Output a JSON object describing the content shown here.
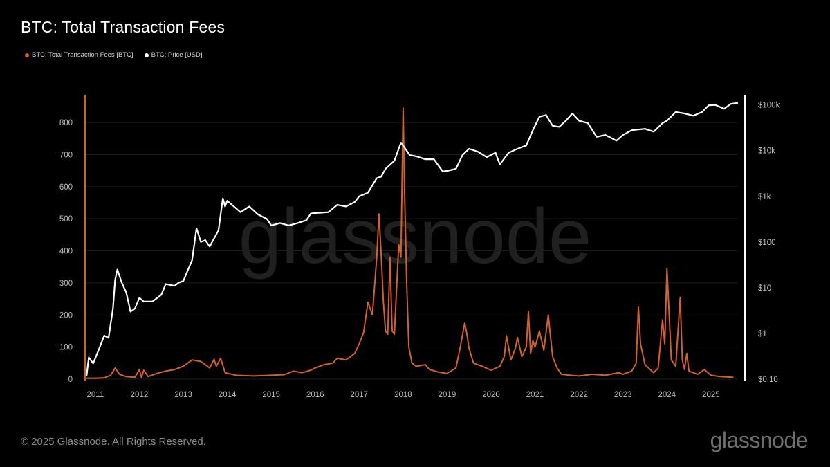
{
  "title": "BTC: Total Transaction Fees",
  "legend": [
    {
      "label": "BTC: Total Transaction Fees [BTC]",
      "color": "#d2612b"
    },
    {
      "label": "BTC: Price [USD]",
      "color": "#ffffff"
    }
  ],
  "watermark": "glassnode",
  "footer": "© 2025 Glassnode. All Rights Reserved.",
  "brand": "glassnode",
  "chart_data": {
    "type": "line",
    "title": "BTC: Total Transaction Fees",
    "xlabel": "",
    "x_ticks": [
      "2011",
      "2012",
      "2013",
      "2014",
      "2015",
      "2016",
      "2017",
      "2018",
      "2019",
      "2020",
      "2021",
      "2022",
      "2023",
      "2024",
      "2025"
    ],
    "xlim": [
      2010.75,
      2025.6
    ],
    "y_left": {
      "ticks": [
        0,
        100,
        200,
        300,
        400,
        500,
        600,
        700,
        800
      ],
      "ylim": [
        0,
        880
      ]
    },
    "y_right": {
      "scale": "log",
      "ticks": [
        0.1,
        1,
        10,
        100,
        1000,
        10000,
        100000
      ],
      "tick_labels": [
        "$0.10",
        "$1",
        "$10",
        "$100",
        "$1k",
        "$10k",
        "$100k"
      ],
      "ylim": [
        0.1,
        150000
      ]
    },
    "grid": true,
    "legend_position": "top-left",
    "series": [
      {
        "name": "BTC: Total Transaction Fees [BTC]",
        "axis": "left",
        "color": "#d2612b",
        "points": [
          [
            2010.8,
            3
          ],
          [
            2011.0,
            3
          ],
          [
            2011.2,
            4
          ],
          [
            2011.35,
            12
          ],
          [
            2011.45,
            35
          ],
          [
            2011.55,
            15
          ],
          [
            2011.7,
            8
          ],
          [
            2011.9,
            6
          ],
          [
            2012.0,
            30
          ],
          [
            2012.05,
            5
          ],
          [
            2012.1,
            28
          ],
          [
            2012.2,
            8
          ],
          [
            2012.4,
            18
          ],
          [
            2012.6,
            25
          ],
          [
            2012.8,
            30
          ],
          [
            2013.0,
            40
          ],
          [
            2013.2,
            60
          ],
          [
            2013.4,
            55
          ],
          [
            2013.6,
            35
          ],
          [
            2013.7,
            62
          ],
          [
            2013.75,
            40
          ],
          [
            2013.85,
            65
          ],
          [
            2013.95,
            20
          ],
          [
            2014.2,
            12
          ],
          [
            2014.6,
            10
          ],
          [
            2015.0,
            12
          ],
          [
            2015.3,
            14
          ],
          [
            2015.5,
            25
          ],
          [
            2015.7,
            20
          ],
          [
            2015.9,
            28
          ],
          [
            2016.0,
            35
          ],
          [
            2016.2,
            45
          ],
          [
            2016.4,
            50
          ],
          [
            2016.5,
            65
          ],
          [
            2016.7,
            60
          ],
          [
            2016.9,
            80
          ],
          [
            2017.0,
            110
          ],
          [
            2017.1,
            145
          ],
          [
            2017.2,
            240
          ],
          [
            2017.3,
            200
          ],
          [
            2017.4,
            380
          ],
          [
            2017.45,
            515
          ],
          [
            2017.5,
            390
          ],
          [
            2017.55,
            240
          ],
          [
            2017.6,
            150
          ],
          [
            2017.65,
            140
          ],
          [
            2017.7,
            380
          ],
          [
            2017.75,
            150
          ],
          [
            2017.8,
            140
          ],
          [
            2017.9,
            420
          ],
          [
            2017.95,
            380
          ],
          [
            2018.0,
            845
          ],
          [
            2018.03,
            600
          ],
          [
            2018.08,
            300
          ],
          [
            2018.13,
            100
          ],
          [
            2018.2,
            50
          ],
          [
            2018.3,
            40
          ],
          [
            2018.5,
            45
          ],
          [
            2018.6,
            30
          ],
          [
            2018.8,
            22
          ],
          [
            2019.0,
            18
          ],
          [
            2019.2,
            35
          ],
          [
            2019.3,
            100
          ],
          [
            2019.4,
            175
          ],
          [
            2019.45,
            140
          ],
          [
            2019.5,
            95
          ],
          [
            2019.6,
            50
          ],
          [
            2019.8,
            40
          ],
          [
            2020.0,
            28
          ],
          [
            2020.2,
            40
          ],
          [
            2020.3,
            70
          ],
          [
            2020.35,
            135
          ],
          [
            2020.45,
            60
          ],
          [
            2020.55,
            95
          ],
          [
            2020.6,
            130
          ],
          [
            2020.7,
            70
          ],
          [
            2020.8,
            100
          ],
          [
            2020.85,
            210
          ],
          [
            2020.9,
            80
          ],
          [
            2020.95,
            120
          ],
          [
            2021.0,
            100
          ],
          [
            2021.1,
            150
          ],
          [
            2021.2,
            90
          ],
          [
            2021.3,
            200
          ],
          [
            2021.4,
            70
          ],
          [
            2021.5,
            35
          ],
          [
            2021.6,
            15
          ],
          [
            2021.8,
            12
          ],
          [
            2022.0,
            10
          ],
          [
            2022.3,
            15
          ],
          [
            2022.6,
            12
          ],
          [
            2022.9,
            20
          ],
          [
            2023.0,
            15
          ],
          [
            2023.2,
            25
          ],
          [
            2023.3,
            50
          ],
          [
            2023.35,
            225
          ],
          [
            2023.4,
            110
          ],
          [
            2023.5,
            45
          ],
          [
            2023.7,
            20
          ],
          [
            2023.8,
            35
          ],
          [
            2023.9,
            185
          ],
          [
            2023.95,
            110
          ],
          [
            2024.0,
            345
          ],
          [
            2024.05,
            200
          ],
          [
            2024.1,
            60
          ],
          [
            2024.2,
            40
          ],
          [
            2024.3,
            255
          ],
          [
            2024.35,
            60
          ],
          [
            2024.4,
            30
          ],
          [
            2024.45,
            80
          ],
          [
            2024.5,
            25
          ],
          [
            2024.7,
            15
          ],
          [
            2024.85,
            30
          ],
          [
            2025.0,
            12
          ],
          [
            2025.2,
            8
          ],
          [
            2025.5,
            6
          ]
        ]
      },
      {
        "name": "BTC: Price [USD]",
        "axis": "right",
        "color": "#ffffff",
        "points": [
          [
            2010.8,
            0.12
          ],
          [
            2010.85,
            0.3
          ],
          [
            2010.95,
            0.22
          ],
          [
            2011.1,
            0.5
          ],
          [
            2011.2,
            0.9
          ],
          [
            2011.3,
            0.8
          ],
          [
            2011.4,
            3.5
          ],
          [
            2011.45,
            15
          ],
          [
            2011.5,
            25
          ],
          [
            2011.6,
            13
          ],
          [
            2011.7,
            8
          ],
          [
            2011.8,
            3
          ],
          [
            2011.9,
            3.5
          ],
          [
            2012.0,
            6
          ],
          [
            2012.1,
            5
          ],
          [
            2012.3,
            5
          ],
          [
            2012.5,
            7
          ],
          [
            2012.6,
            12
          ],
          [
            2012.8,
            11
          ],
          [
            2012.9,
            13
          ],
          [
            2013.0,
            14
          ],
          [
            2013.2,
            40
          ],
          [
            2013.3,
            200
          ],
          [
            2013.4,
            100
          ],
          [
            2013.5,
            110
          ],
          [
            2013.6,
            80
          ],
          [
            2013.7,
            120
          ],
          [
            2013.8,
            180
          ],
          [
            2013.9,
            900
          ],
          [
            2013.95,
            600
          ],
          [
            2014.0,
            800
          ],
          [
            2014.15,
            600
          ],
          [
            2014.3,
            450
          ],
          [
            2014.5,
            600
          ],
          [
            2014.7,
            400
          ],
          [
            2014.9,
            320
          ],
          [
            2015.0,
            230
          ],
          [
            2015.2,
            260
          ],
          [
            2015.4,
            230
          ],
          [
            2015.6,
            260
          ],
          [
            2015.8,
            300
          ],
          [
            2015.9,
            420
          ],
          [
            2016.0,
            430
          ],
          [
            2016.3,
            450
          ],
          [
            2016.5,
            650
          ],
          [
            2016.7,
            600
          ],
          [
            2016.9,
            750
          ],
          [
            2017.0,
            1000
          ],
          [
            2017.2,
            1200
          ],
          [
            2017.4,
            2500
          ],
          [
            2017.5,
            2700
          ],
          [
            2017.6,
            4000
          ],
          [
            2017.8,
            6000
          ],
          [
            2017.95,
            15000
          ],
          [
            2018.05,
            11000
          ],
          [
            2018.15,
            8000
          ],
          [
            2018.3,
            7500
          ],
          [
            2018.5,
            6500
          ],
          [
            2018.7,
            6500
          ],
          [
            2018.9,
            3500
          ],
          [
            2019.0,
            3600
          ],
          [
            2019.2,
            4000
          ],
          [
            2019.35,
            8000
          ],
          [
            2019.5,
            11000
          ],
          [
            2019.7,
            9500
          ],
          [
            2019.9,
            7200
          ],
          [
            2020.1,
            9000
          ],
          [
            2020.2,
            5000
          ],
          [
            2020.4,
            9000
          ],
          [
            2020.6,
            11000
          ],
          [
            2020.8,
            13000
          ],
          [
            2020.95,
            28000
          ],
          [
            2021.1,
            55000
          ],
          [
            2021.25,
            60000
          ],
          [
            2021.4,
            35000
          ],
          [
            2021.55,
            33000
          ],
          [
            2021.7,
            45000
          ],
          [
            2021.85,
            65000
          ],
          [
            2022.0,
            45000
          ],
          [
            2022.2,
            40000
          ],
          [
            2022.4,
            20000
          ],
          [
            2022.6,
            22000
          ],
          [
            2022.85,
            16500
          ],
          [
            2023.0,
            22000
          ],
          [
            2023.2,
            28000
          ],
          [
            2023.5,
            30000
          ],
          [
            2023.7,
            26000
          ],
          [
            2023.9,
            40000
          ],
          [
            2024.0,
            45000
          ],
          [
            2024.2,
            70000
          ],
          [
            2024.4,
            65000
          ],
          [
            2024.6,
            58000
          ],
          [
            2024.8,
            70000
          ],
          [
            2024.95,
            98000
          ],
          [
            2025.1,
            100000
          ],
          [
            2025.3,
            82000
          ],
          [
            2025.45,
            105000
          ],
          [
            2025.6,
            110000
          ]
        ]
      }
    ]
  }
}
